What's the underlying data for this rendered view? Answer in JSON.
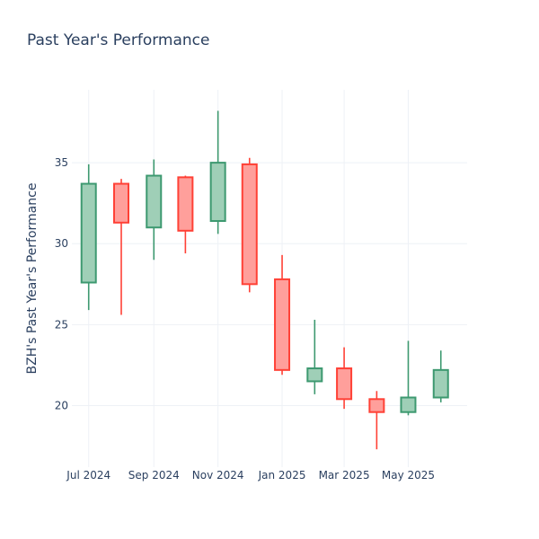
{
  "chart_data": {
    "type": "candlestick",
    "title": "Past Year's Performance",
    "ylabel": "BZH's Past Year's Performance",
    "xlabel": "",
    "ylim": [
      16.2,
      39.5
    ],
    "xlim": [
      "2024-06-15",
      "2025-06-26"
    ],
    "yticks": [
      20,
      25,
      30,
      35
    ],
    "xticks": [
      {
        "date": "2024-07-01",
        "label": "Jul 2024"
      },
      {
        "date": "2024-09-01",
        "label": "Sep 2024"
      },
      {
        "date": "2024-11-01",
        "label": "Nov 2024"
      },
      {
        "date": "2025-01-01",
        "label": "Jan 2025"
      },
      {
        "date": "2025-03-01",
        "label": "Mar 2025"
      },
      {
        "date": "2025-05-01",
        "label": "May 2025"
      }
    ],
    "grid": true,
    "colors": {
      "increasing_line": "#3d9970",
      "increasing_fill": "#9fcfb7",
      "decreasing_line": "#ff4136",
      "decreasing_fill": "#ff9f9b"
    },
    "candles": [
      {
        "date": "2024-07-01",
        "open": 27.6,
        "high": 34.9,
        "low": 25.9,
        "close": 33.7
      },
      {
        "date": "2024-08-01",
        "open": 33.7,
        "high": 34.0,
        "low": 25.6,
        "close": 31.3
      },
      {
        "date": "2024-09-01",
        "open": 31.0,
        "high": 35.2,
        "low": 29.0,
        "close": 34.2
      },
      {
        "date": "2024-10-01",
        "open": 34.1,
        "high": 34.2,
        "low": 29.4,
        "close": 30.8
      },
      {
        "date": "2024-11-01",
        "open": 31.4,
        "high": 38.2,
        "low": 30.6,
        "close": 35.0
      },
      {
        "date": "2024-12-01",
        "open": 34.9,
        "high": 35.3,
        "low": 27.0,
        "close": 27.5
      },
      {
        "date": "2025-01-01",
        "open": 27.8,
        "high": 29.3,
        "low": 21.9,
        "close": 22.2
      },
      {
        "date": "2025-02-01",
        "open": 21.5,
        "high": 25.3,
        "low": 20.7,
        "close": 22.3
      },
      {
        "date": "2025-03-01",
        "open": 22.3,
        "high": 23.6,
        "low": 19.8,
        "close": 20.4
      },
      {
        "date": "2025-04-01",
        "open": 20.4,
        "high": 20.9,
        "low": 17.3,
        "close": 19.6
      },
      {
        "date": "2025-05-01",
        "open": 19.6,
        "high": 24.0,
        "low": 19.4,
        "close": 20.5
      },
      {
        "date": "2025-06-01",
        "open": 20.5,
        "high": 23.4,
        "low": 20.2,
        "close": 22.2
      }
    ]
  }
}
